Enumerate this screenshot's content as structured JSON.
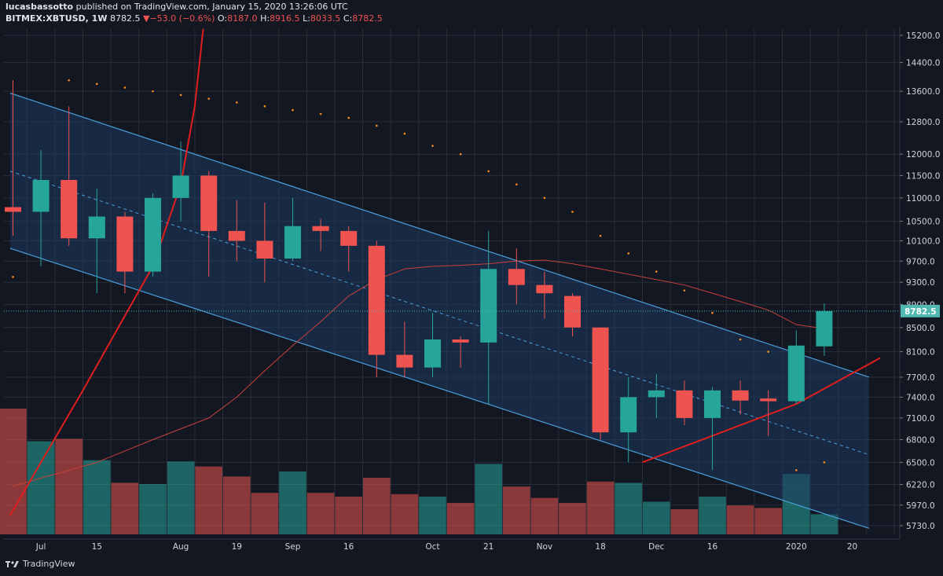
{
  "header": {
    "author": "lucasbassotto",
    "published_text": "published on TradingView.com, January 15, 2020 13:26:06 UTC",
    "symbol": "BITMEX:XBTUSD, 1W",
    "last": "8782.5",
    "change": "−53.0 (−0.6%)",
    "o_label": "O:",
    "o_value": "8187.0",
    "h_label": "H:",
    "h_value": "8916.5",
    "l_label": "L:",
    "l_value": "8033.5",
    "c_label": "C:",
    "c_value": "8782.5"
  },
  "footer": {
    "brand": "TradingView"
  },
  "colors": {
    "background": "#131722",
    "grid": "#2a2e39",
    "up": "#26a69a",
    "down": "#ef5350",
    "channel_fill": "#1e3a5f",
    "channel_line": "#4a9fdc",
    "ma": "#c8413a",
    "curve": "#e01e1e",
    "sar": "#ff8c1a",
    "last_price_line": "#4fb8b0"
  },
  "chart_data": {
    "type": "candlestick",
    "timeframe": "1W",
    "ylim": [
      5600,
      15400
    ],
    "y_scale": "log",
    "y_ticks": [
      15200,
      14400,
      13600,
      12800,
      12000,
      11500,
      11000,
      10500,
      10100,
      9700,
      9300,
      8900,
      8500,
      8100,
      7700,
      7400,
      7100,
      6800,
      6500,
      6220,
      5970,
      5730
    ],
    "x_ticks": [
      {
        "label": "Jul",
        "i": 1
      },
      {
        "label": "15",
        "i": 3
      },
      {
        "label": "Aug",
        "i": 6
      },
      {
        "label": "19",
        "i": 8
      },
      {
        "label": "Sep",
        "i": 10
      },
      {
        "label": "16",
        "i": 12
      },
      {
        "label": "Oct",
        "i": 15
      },
      {
        "label": "21",
        "i": 17
      },
      {
        "label": "Nov",
        "i": 19
      },
      {
        "label": "18",
        "i": 21
      },
      {
        "label": "Dec",
        "i": 23
      },
      {
        "label": "16",
        "i": 25
      },
      {
        "label": "2020",
        "i": 28
      },
      {
        "label": "20",
        "i": 30
      }
    ],
    "candles": [
      {
        "o": 10800,
        "h": 13900,
        "l": 10200,
        "c": 10700
      },
      {
        "o": 10700,
        "h": 12100,
        "l": 9600,
        "c": 11400
      },
      {
        "o": 11400,
        "h": 13200,
        "l": 10000,
        "c": 10150
      },
      {
        "o": 10150,
        "h": 11200,
        "l": 9100,
        "c": 10600
      },
      {
        "o": 10600,
        "h": 10700,
        "l": 9100,
        "c": 9500
      },
      {
        "o": 9500,
        "h": 11100,
        "l": 9400,
        "c": 11000
      },
      {
        "o": 11000,
        "h": 12300,
        "l": 10500,
        "c": 11500
      },
      {
        "o": 11500,
        "h": 11600,
        "l": 9400,
        "c": 10300
      },
      {
        "o": 10300,
        "h": 10950,
        "l": 9700,
        "c": 10100
      },
      {
        "o": 10100,
        "h": 10900,
        "l": 9300,
        "c": 9750
      },
      {
        "o": 9750,
        "h": 11000,
        "l": 9700,
        "c": 10400
      },
      {
        "o": 10400,
        "h": 10550,
        "l": 9900,
        "c": 10300
      },
      {
        "o": 10300,
        "h": 10400,
        "l": 9500,
        "c": 10000
      },
      {
        "o": 10000,
        "h": 10100,
        "l": 7700,
        "c": 8050
      },
      {
        "o": 8050,
        "h": 8600,
        "l": 7700,
        "c": 7850
      },
      {
        "o": 7850,
        "h": 8750,
        "l": 7700,
        "c": 8300
      },
      {
        "o": 8300,
        "h": 8350,
        "l": 7850,
        "c": 8250
      },
      {
        "o": 8250,
        "h": 10300,
        "l": 7300,
        "c": 9550
      },
      {
        "o": 9550,
        "h": 9950,
        "l": 8900,
        "c": 9250
      },
      {
        "o": 9250,
        "h": 9500,
        "l": 8650,
        "c": 9100
      },
      {
        "o": 9050,
        "h": 9100,
        "l": 8350,
        "c": 8500
      },
      {
        "o": 8500,
        "h": 8500,
        "l": 6800,
        "c": 6900
      },
      {
        "o": 6900,
        "h": 7700,
        "l": 6500,
        "c": 7400
      },
      {
        "o": 7400,
        "h": 7750,
        "l": 7100,
        "c": 7500
      },
      {
        "o": 7500,
        "h": 7650,
        "l": 7000,
        "c": 7100
      },
      {
        "o": 7100,
        "h": 7550,
        "l": 6400,
        "c": 7500
      },
      {
        "o": 7500,
        "h": 7650,
        "l": 7150,
        "c": 7350
      },
      {
        "o": 7380,
        "h": 7500,
        "l": 6850,
        "c": 7340
      },
      {
        "o": 7340,
        "h": 8450,
        "l": 7300,
        "c": 8200
      },
      {
        "o": 8187,
        "h": 8916.5,
        "l": 8033.5,
        "c": 8782.5
      }
    ],
    "volume": [
      {
        "v": 1.0,
        "up": false
      },
      {
        "v": 0.74,
        "up": true
      },
      {
        "v": 0.76,
        "up": false
      },
      {
        "v": 0.59,
        "up": true
      },
      {
        "v": 0.41,
        "up": false
      },
      {
        "v": 0.4,
        "up": true
      },
      {
        "v": 0.58,
        "up": true
      },
      {
        "v": 0.54,
        "up": false
      },
      {
        "v": 0.46,
        "up": false
      },
      {
        "v": 0.33,
        "up": false
      },
      {
        "v": 0.5,
        "up": true
      },
      {
        "v": 0.33,
        "up": false
      },
      {
        "v": 0.3,
        "up": false
      },
      {
        "v": 0.45,
        "up": false
      },
      {
        "v": 0.32,
        "up": false
      },
      {
        "v": 0.3,
        "up": true
      },
      {
        "v": 0.25,
        "up": false
      },
      {
        "v": 0.56,
        "up": true
      },
      {
        "v": 0.38,
        "up": false
      },
      {
        "v": 0.29,
        "up": false
      },
      {
        "v": 0.25,
        "up": false
      },
      {
        "v": 0.42,
        "up": false
      },
      {
        "v": 0.41,
        "up": true
      },
      {
        "v": 0.26,
        "up": true
      },
      {
        "v": 0.2,
        "up": false
      },
      {
        "v": 0.3,
        "up": true
      },
      {
        "v": 0.23,
        "up": false
      },
      {
        "v": 0.21,
        "up": false
      },
      {
        "v": 0.48,
        "up": true
      },
      {
        "v": 0.16,
        "up": true
      }
    ],
    "ma": [
      null,
      null,
      null,
      null,
      null,
      null,
      null,
      7100,
      7400,
      7800,
      8200,
      8600,
      9050,
      9350,
      9550,
      9600,
      9620,
      9650,
      9700,
      9720,
      9650,
      9550,
      9450,
      9350,
      9250,
      9100,
      8950,
      8800,
      8550,
      8480
    ],
    "sar": [
      9400,
      null,
      13900,
      13800,
      13700,
      13600,
      13500,
      13400,
      13300,
      13200,
      13100,
      13000,
      12900,
      12700,
      12500,
      12200,
      12000,
      11600,
      11300,
      11000,
      10700,
      10200,
      9850,
      9500,
      9150,
      8750,
      8300,
      8100,
      6400,
      6500
    ],
    "channel": {
      "upper": {
        "i0": -0.1,
        "p0": 13550,
        "i1": 30.6,
        "p1": 7700
      },
      "lower": {
        "i0": -0.1,
        "p0": 9950,
        "i1": 30.6,
        "p1": 5700
      },
      "mid": {
        "i0": -0.1,
        "p0": 11600,
        "i1": 30.6,
        "p1": 6600
      }
    },
    "curve": [
      {
        "i": -0.1,
        "p": 5850
      },
      {
        "i": 1.0,
        "p": 6500
      },
      {
        "i": 2.5,
        "p": 7500
      },
      {
        "i": 4.0,
        "p": 8700
      },
      {
        "i": 5.0,
        "p": 9600
      },
      {
        "i": 6.0,
        "p": 11300
      },
      {
        "i": 6.5,
        "p": 13200
      },
      {
        "i": 6.8,
        "p": 15400
      }
    ],
    "support_curve": [
      {
        "i": 22.5,
        "p": 6500
      },
      {
        "i": 25.0,
        "p": 6850
      },
      {
        "i": 28.0,
        "p": 7300
      },
      {
        "i": 31.0,
        "p": 8000
      }
    ],
    "last_price": 8782.5,
    "last_price_label": "8782.5"
  }
}
